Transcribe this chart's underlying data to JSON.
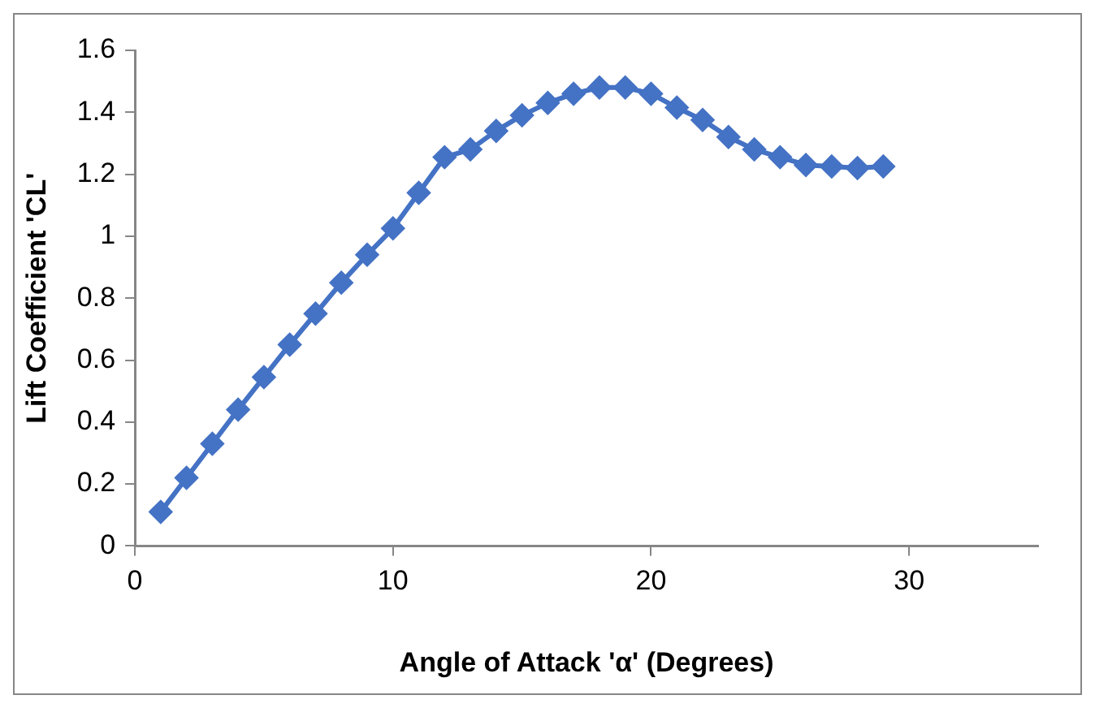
{
  "chart_data": {
    "type": "line",
    "xlabel": "Angle of Attack 'α' (Degrees)",
    "ylabel": "Lift Coefficient 'CL'",
    "x": [
      1,
      2,
      3,
      4,
      5,
      6,
      7,
      8,
      9,
      10,
      11,
      12,
      13,
      14,
      15,
      16,
      17,
      18,
      19,
      20,
      21,
      22,
      23,
      24,
      25,
      26,
      27,
      28,
      29
    ],
    "series": [
      {
        "color": "#4472c4",
        "values": [
          0.11,
          0.22,
          0.33,
          0.44,
          0.545,
          0.65,
          0.75,
          0.85,
          0.94,
          1.025,
          1.14,
          1.255,
          1.28,
          1.34,
          1.39,
          1.43,
          1.46,
          1.48,
          1.48,
          1.46,
          1.415,
          1.375,
          1.32,
          1.28,
          1.255,
          1.23,
          1.225,
          1.22,
          1.225
        ]
      }
    ],
    "xlim": [
      0,
      35
    ],
    "xticks": [
      0,
      10,
      20,
      30
    ],
    "ylim": [
      0,
      1.6
    ],
    "yticks": [
      0,
      0.2,
      0.4,
      0.6,
      0.8,
      1,
      1.2,
      1.4,
      1.6
    ],
    "grid": false,
    "legend": false,
    "marker": "diamond",
    "line_style": "solid"
  }
}
